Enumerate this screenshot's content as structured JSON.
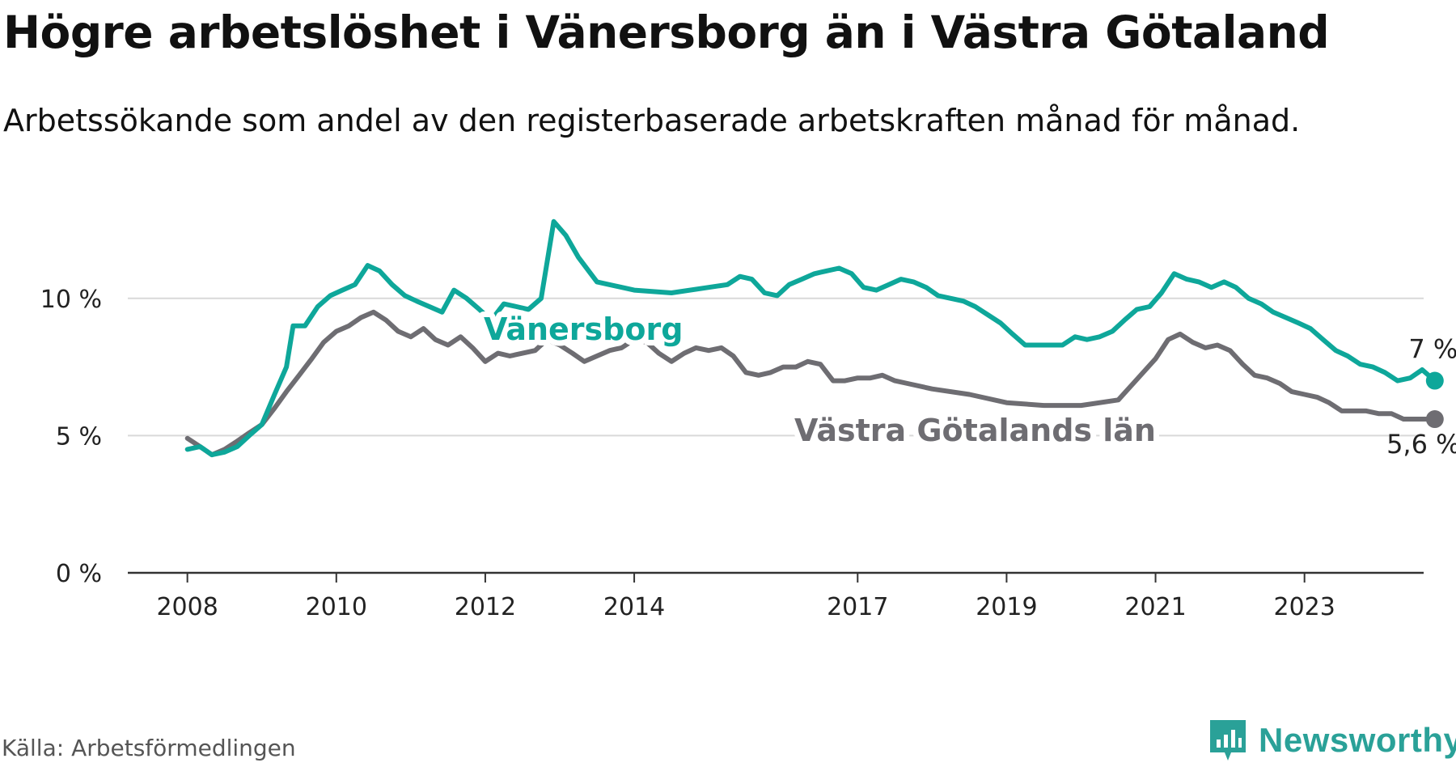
{
  "title": "Högre arbetslöshet i Vänersborg än i Västra Götaland",
  "subtitle": "Arbetssökande som andel av den registerbaserade arbetskraften månad för månad.",
  "source": "Källa: Arbetsförmedlingen",
  "brand": "Newsworthy",
  "colors": {
    "vanersborg": "#0ea79a",
    "vg": "#6e6d72",
    "grid": "#d9d9d9",
    "axis": "#333333",
    "brand": "#2aa198"
  },
  "chart_data": {
    "type": "line",
    "title": "Högre arbetslöshet i Vänersborg än i Västra Götaland",
    "ylabel": "",
    "xlabel": "",
    "ylim": [
      0,
      12.5
    ],
    "xlim": [
      2007.2,
      2024.6
    ],
    "y_ticks": [
      0,
      5,
      10
    ],
    "y_tick_labels": [
      "0 %",
      "5 %",
      "10 %"
    ],
    "x_ticks": [
      2008,
      2010,
      2012,
      2014,
      2017,
      2019,
      2021,
      2023
    ],
    "x_tick_labels": [
      "2008",
      "2010",
      "2012",
      "2014",
      "2017",
      "2019",
      "2021",
      "2023"
    ],
    "grid": true,
    "series": [
      {
        "name": "Vänersborg",
        "color": "#0ea79a",
        "end_label": "7 %",
        "points": [
          [
            2008.0,
            4.5
          ],
          [
            2008.17,
            4.6
          ],
          [
            2008.33,
            4.3
          ],
          [
            2008.5,
            4.4
          ],
          [
            2008.67,
            4.6
          ],
          [
            2008.83,
            5.0
          ],
          [
            2009.0,
            5.4
          ],
          [
            2009.17,
            6.5
          ],
          [
            2009.33,
            7.5
          ],
          [
            2009.42,
            9.0
          ],
          [
            2009.58,
            9.0
          ],
          [
            2009.75,
            9.7
          ],
          [
            2009.92,
            10.1
          ],
          [
            2010.08,
            10.3
          ],
          [
            2010.25,
            10.5
          ],
          [
            2010.42,
            11.2
          ],
          [
            2010.58,
            11.0
          ],
          [
            2010.75,
            10.5
          ],
          [
            2010.92,
            10.1
          ],
          [
            2011.08,
            9.9
          ],
          [
            2011.25,
            9.7
          ],
          [
            2011.42,
            9.5
          ],
          [
            2011.58,
            10.3
          ],
          [
            2011.75,
            10.0
          ],
          [
            2011.92,
            9.6
          ],
          [
            2012.08,
            9.2
          ],
          [
            2012.25,
            9.8
          ],
          [
            2012.42,
            9.7
          ],
          [
            2012.58,
            9.6
          ],
          [
            2012.75,
            10.0
          ],
          [
            2012.92,
            12.8
          ],
          [
            2013.08,
            12.3
          ],
          [
            2013.25,
            11.5
          ],
          [
            2013.5,
            10.6
          ],
          [
            2014.0,
            10.3
          ],
          [
            2014.5,
            10.2
          ],
          [
            2015.0,
            10.4
          ],
          [
            2015.25,
            10.5
          ],
          [
            2015.42,
            10.8
          ],
          [
            2015.58,
            10.7
          ],
          [
            2015.75,
            10.2
          ],
          [
            2015.92,
            10.1
          ],
          [
            2016.08,
            10.5
          ],
          [
            2016.25,
            10.7
          ],
          [
            2016.42,
            10.9
          ],
          [
            2016.58,
            11.0
          ],
          [
            2016.75,
            11.1
          ],
          [
            2016.92,
            10.9
          ],
          [
            2017.08,
            10.4
          ],
          [
            2017.25,
            10.3
          ],
          [
            2017.42,
            10.5
          ],
          [
            2017.58,
            10.7
          ],
          [
            2017.75,
            10.6
          ],
          [
            2017.92,
            10.4
          ],
          [
            2018.08,
            10.1
          ],
          [
            2018.25,
            10.0
          ],
          [
            2018.42,
            9.9
          ],
          [
            2018.58,
            9.7
          ],
          [
            2018.75,
            9.4
          ],
          [
            2018.92,
            9.1
          ],
          [
            2019.08,
            8.7
          ],
          [
            2019.25,
            8.3
          ],
          [
            2019.42,
            8.3
          ],
          [
            2019.58,
            8.3
          ],
          [
            2019.75,
            8.3
          ],
          [
            2019.92,
            8.6
          ],
          [
            2020.08,
            8.5
          ],
          [
            2020.25,
            8.6
          ],
          [
            2020.42,
            8.8
          ],
          [
            2020.58,
            9.2
          ],
          [
            2020.75,
            9.6
          ],
          [
            2020.92,
            9.7
          ],
          [
            2021.08,
            10.2
          ],
          [
            2021.25,
            10.9
          ],
          [
            2021.42,
            10.7
          ],
          [
            2021.58,
            10.6
          ],
          [
            2021.75,
            10.4
          ],
          [
            2021.92,
            10.6
          ],
          [
            2022.08,
            10.4
          ],
          [
            2022.25,
            10.0
          ],
          [
            2022.42,
            9.8
          ],
          [
            2022.58,
            9.5
          ],
          [
            2022.75,
            9.3
          ],
          [
            2022.92,
            9.1
          ],
          [
            2023.08,
            8.9
          ],
          [
            2023.25,
            8.5
          ],
          [
            2023.42,
            8.1
          ],
          [
            2023.58,
            7.9
          ],
          [
            2023.75,
            7.6
          ],
          [
            2023.92,
            7.5
          ],
          [
            2024.08,
            7.3
          ],
          [
            2024.25,
            7.0
          ],
          [
            2024.42,
            7.1
          ],
          [
            2024.58,
            7.4
          ],
          [
            2024.75,
            7.0
          ]
        ]
      },
      {
        "name": "Västra Götalands län",
        "color": "#6e6d72",
        "end_label": "5,6 %",
        "points": [
          [
            2008.0,
            4.9
          ],
          [
            2008.17,
            4.6
          ],
          [
            2008.33,
            4.3
          ],
          [
            2008.5,
            4.5
          ],
          [
            2008.67,
            4.8
          ],
          [
            2008.83,
            5.1
          ],
          [
            2009.0,
            5.4
          ],
          [
            2009.17,
            6.0
          ],
          [
            2009.33,
            6.6
          ],
          [
            2009.5,
            7.2
          ],
          [
            2009.67,
            7.8
          ],
          [
            2009.83,
            8.4
          ],
          [
            2010.0,
            8.8
          ],
          [
            2010.17,
            9.0
          ],
          [
            2010.33,
            9.3
          ],
          [
            2010.5,
            9.5
          ],
          [
            2010.67,
            9.2
          ],
          [
            2010.83,
            8.8
          ],
          [
            2011.0,
            8.6
          ],
          [
            2011.17,
            8.9
          ],
          [
            2011.33,
            8.5
          ],
          [
            2011.5,
            8.3
          ],
          [
            2011.67,
            8.6
          ],
          [
            2011.83,
            8.2
          ],
          [
            2012.0,
            7.7
          ],
          [
            2012.17,
            8.0
          ],
          [
            2012.33,
            7.9
          ],
          [
            2012.5,
            8.0
          ],
          [
            2012.67,
            8.1
          ],
          [
            2012.83,
            8.5
          ],
          [
            2013.0,
            8.3
          ],
          [
            2013.17,
            8.0
          ],
          [
            2013.33,
            7.7
          ],
          [
            2013.5,
            7.9
          ],
          [
            2013.67,
            8.1
          ],
          [
            2013.83,
            8.2
          ],
          [
            2014.0,
            8.5
          ],
          [
            2014.17,
            8.4
          ],
          [
            2014.33,
            8.0
          ],
          [
            2014.5,
            7.7
          ],
          [
            2014.67,
            8.0
          ],
          [
            2014.83,
            8.2
          ],
          [
            2015.0,
            8.1
          ],
          [
            2015.17,
            8.2
          ],
          [
            2015.33,
            7.9
          ],
          [
            2015.5,
            7.3
          ],
          [
            2015.67,
            7.2
          ],
          [
            2015.83,
            7.3
          ],
          [
            2016.0,
            7.5
          ],
          [
            2016.17,
            7.5
          ],
          [
            2016.33,
            7.7
          ],
          [
            2016.5,
            7.6
          ],
          [
            2016.67,
            7.0
          ],
          [
            2016.83,
            7.0
          ],
          [
            2017.0,
            7.1
          ],
          [
            2017.17,
            7.1
          ],
          [
            2017.33,
            7.2
          ],
          [
            2017.5,
            7.0
          ],
          [
            2017.67,
            6.9
          ],
          [
            2018.0,
            6.7
          ],
          [
            2018.5,
            6.5
          ],
          [
            2019.0,
            6.2
          ],
          [
            2019.5,
            6.1
          ],
          [
            2020.0,
            6.1
          ],
          [
            2020.5,
            6.3
          ],
          [
            2021.0,
            7.8
          ],
          [
            2021.17,
            8.5
          ],
          [
            2021.33,
            8.7
          ],
          [
            2021.5,
            8.4
          ],
          [
            2021.67,
            8.2
          ],
          [
            2021.83,
            8.3
          ],
          [
            2022.0,
            8.1
          ],
          [
            2022.17,
            7.6
          ],
          [
            2022.33,
            7.2
          ],
          [
            2022.5,
            7.1
          ],
          [
            2022.67,
            6.9
          ],
          [
            2022.83,
            6.6
          ],
          [
            2023.0,
            6.5
          ],
          [
            2023.17,
            6.4
          ],
          [
            2023.33,
            6.2
          ],
          [
            2023.5,
            5.9
          ],
          [
            2023.67,
            5.9
          ],
          [
            2023.83,
            5.9
          ],
          [
            2024.0,
            5.8
          ],
          [
            2024.17,
            5.8
          ],
          [
            2024.33,
            5.6
          ],
          [
            2024.5,
            5.6
          ],
          [
            2024.75,
            5.6
          ]
        ]
      }
    ],
    "annotations": [
      {
        "text": "Vänersborg",
        "series": "Vänersborg"
      },
      {
        "text": "Västra Götalands län",
        "series": "Västra Götalands län"
      }
    ]
  }
}
